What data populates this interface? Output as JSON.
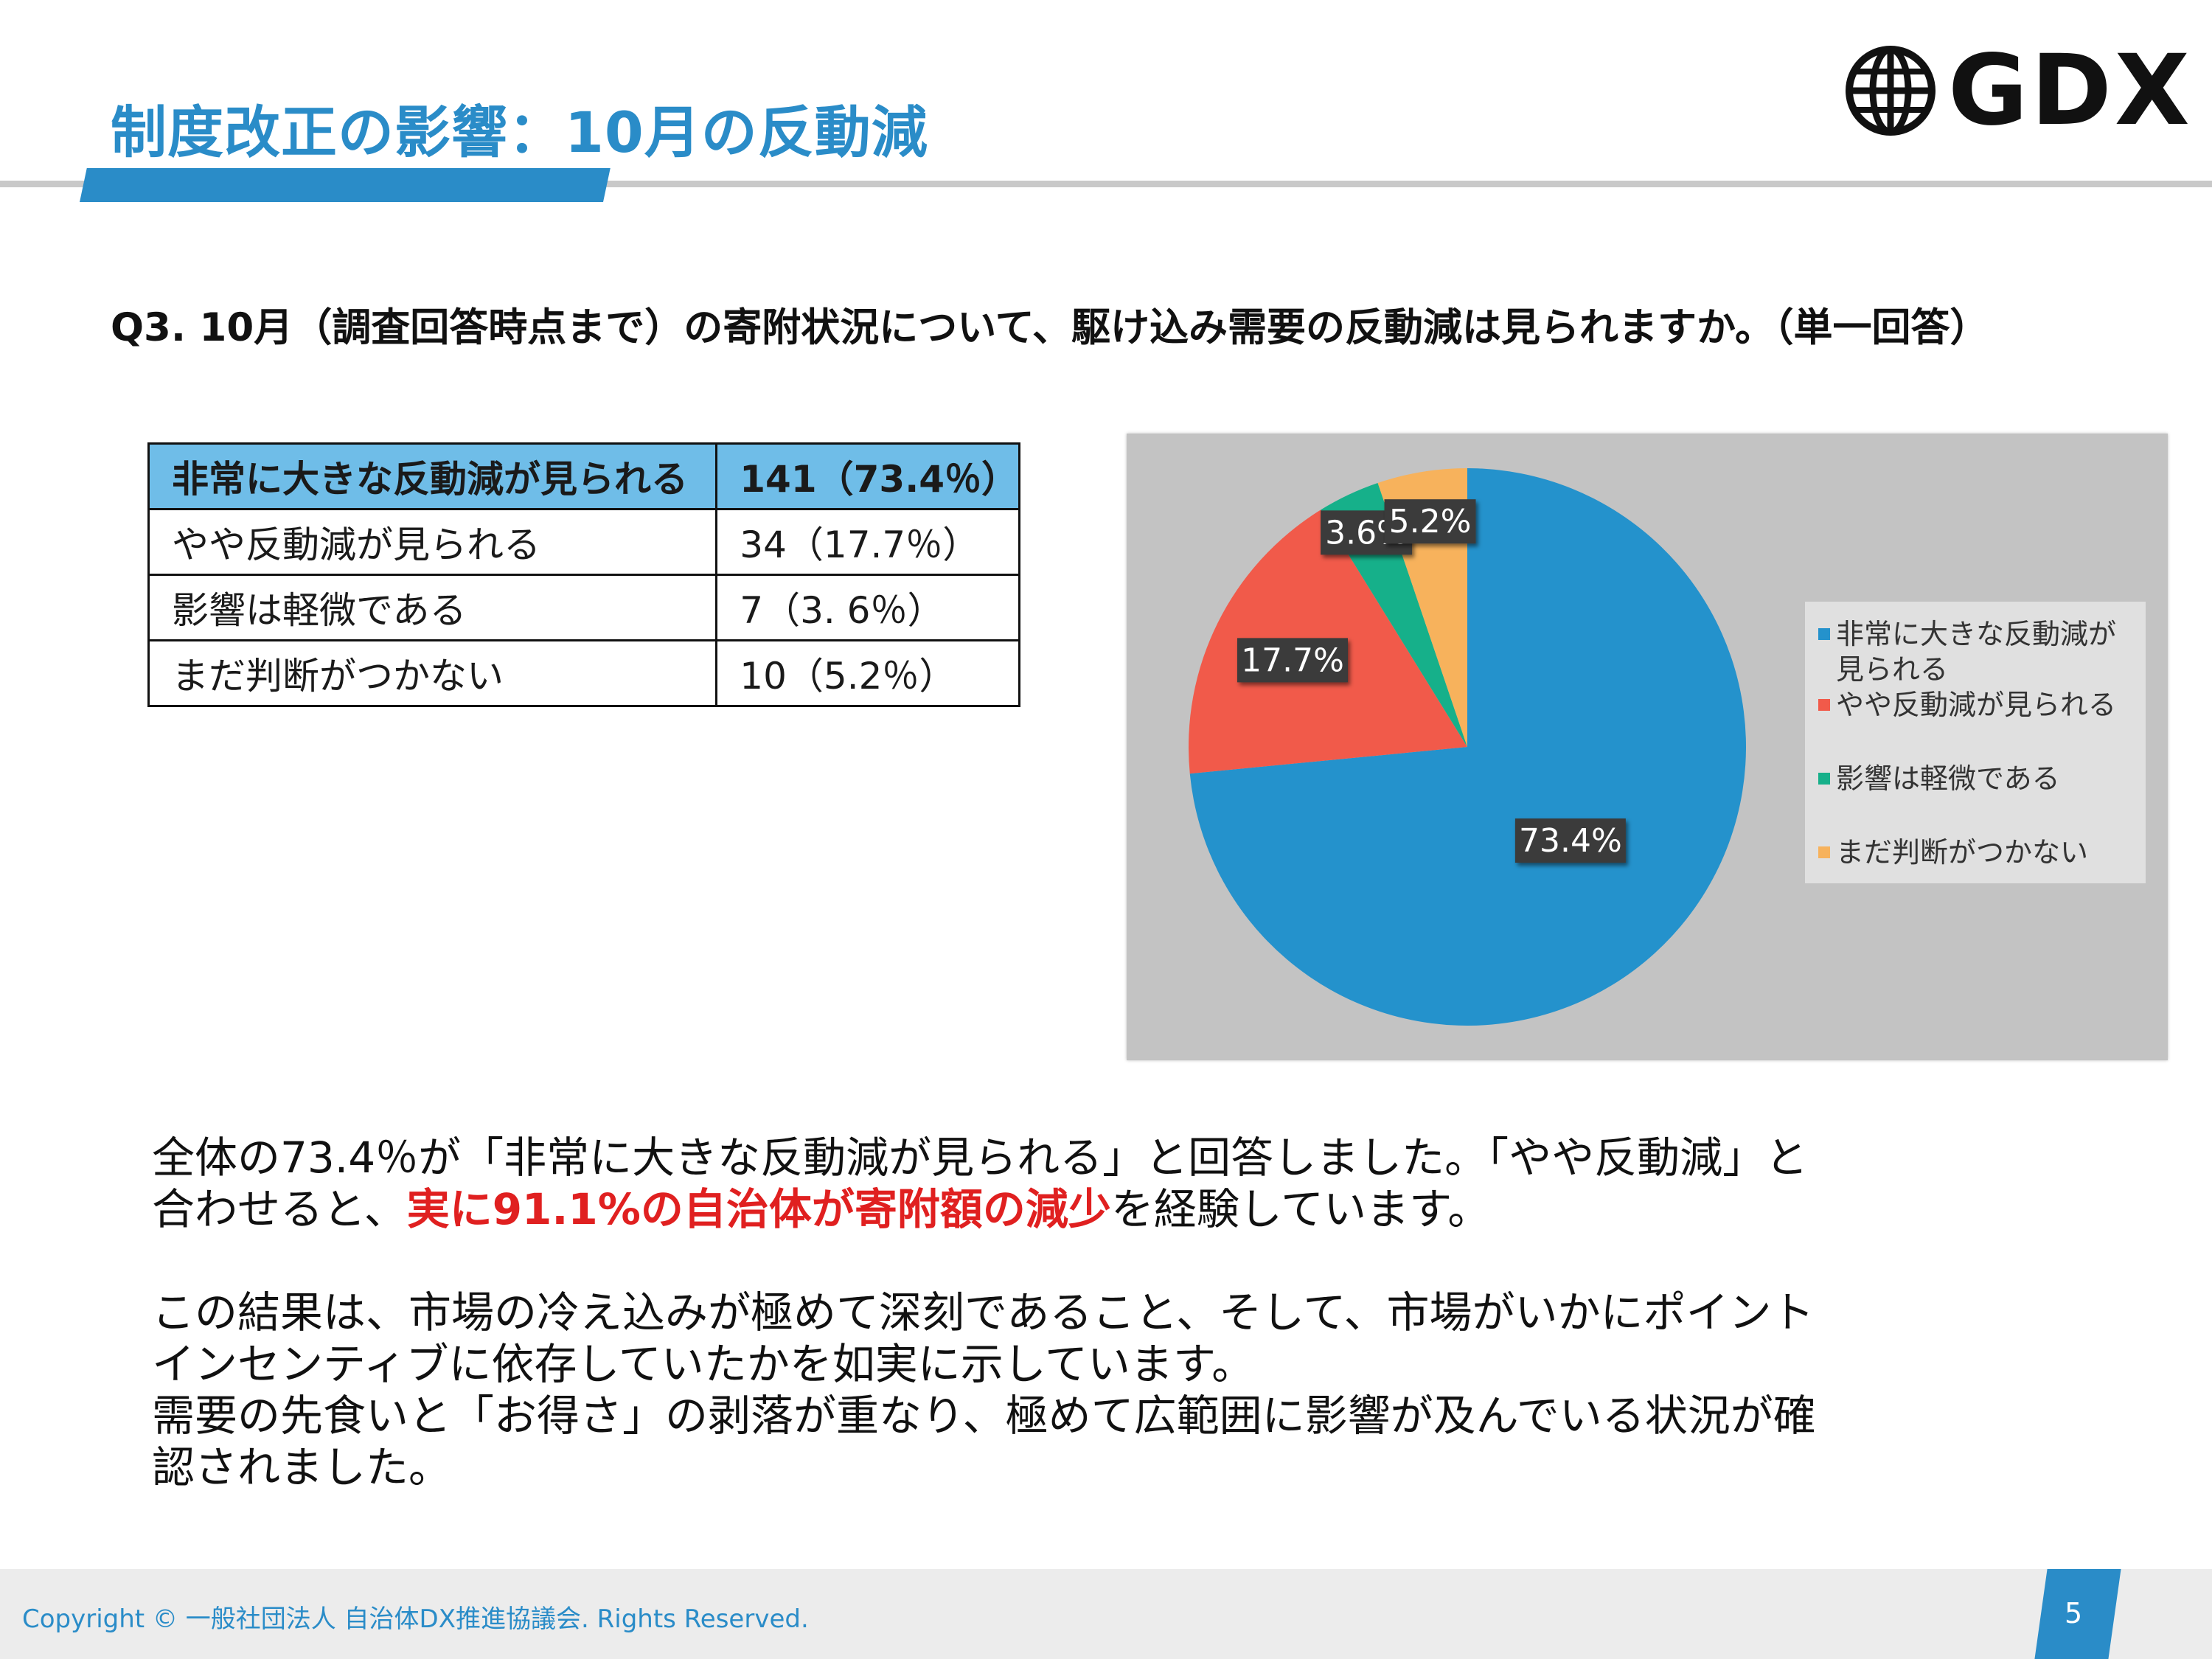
{
  "header": {
    "title": "制度改正の影響：10月の反動減",
    "logo_text": "GDX",
    "logo_icon": "globe-icon",
    "accent_color": "#2a8cc8"
  },
  "question": "Q3. 10月（調査回答時点まで）の寄附状況について、駆け込み需要の反動減は見られますか。（単一回答）",
  "table": {
    "rows": [
      {
        "label": "非常に大きな反動減が見られる",
        "value": "141（73.4％）"
      },
      {
        "label": "やや反動減が見られる",
        "value": "34（17.7％）"
      },
      {
        "label": "影響は軽微である",
        "value": "7（3. 6％）"
      },
      {
        "label": "まだ判断がつかない",
        "value": "10（5.2％）"
      }
    ]
  },
  "chart_data": {
    "type": "pie",
    "categories": [
      "非常に大きな反動減が見られる",
      "やや反動減が見られる",
      "影響は軽微である",
      "まだ判断がつかない"
    ],
    "values": [
      73.4,
      17.7,
      3.6,
      5.2
    ],
    "data_labels": [
      "73.4%",
      "17.7%",
      "3.6%",
      "5.2%"
    ],
    "colors": [
      "#2492cc",
      "#f15a4a",
      "#16b08a",
      "#f7b25c"
    ],
    "legend_labels": [
      "非常に大きな反動減が見られる",
      "やや反動減が見られる",
      "影響は軽微である",
      "まだ判断がつかない"
    ],
    "legend": "right",
    "title": ""
  },
  "body": {
    "p1_a": "全体の73.4％が「非常に大きな反動減が見られる」と回答しました。「やや反動減」と",
    "p1_b": "合わせると、",
    "p1_highlight": "実に91.1%の自治体が寄附額の減少",
    "p1_c": "を経験しています。",
    "p2_a": "この結果は、市場の冷え込みが極めて深刻であること、そして、市場がいかにポイント",
    "p2_b": "インセンティブに依存していたかを如実に示しています。",
    "p2_c": "需要の先食いと「お得さ」の剥落が重なり、極めて広範囲に影響が及んでいる状況が確",
    "p2_d": "認されました。"
  },
  "footer": {
    "copyright": "Copyright © 一般社団法人 自治体DX推進協議会. Rights Reserved.",
    "page_number": "5"
  }
}
